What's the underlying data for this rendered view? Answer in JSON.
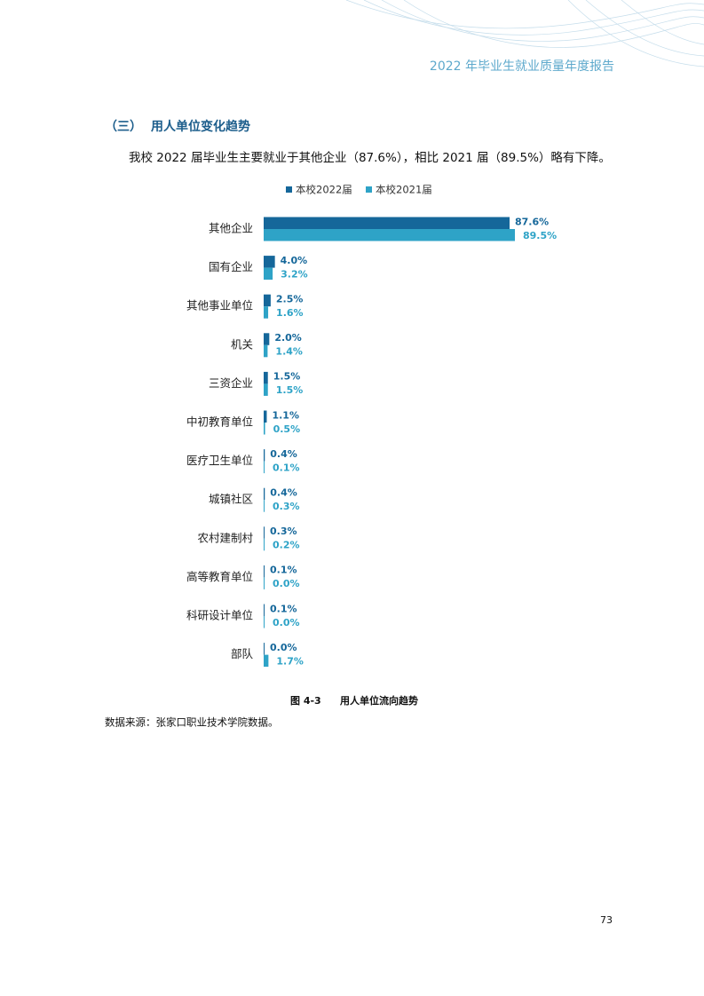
{
  "header": {
    "title": "2022 年毕业生就业质量年度报告"
  },
  "section": {
    "number": "（三）",
    "heading": "用人单位变化趋势"
  },
  "paragraph": "我校 2022 届毕业生主要就业于其他企业（87.6%），相比 2021 届（89.5%）略有下降。",
  "chart_data": {
    "type": "bar",
    "orientation": "horizontal",
    "categories": [
      "其他企业",
      "国有企业",
      "其他事业单位",
      "机关",
      "三资企业",
      "中初教育单位",
      "医疗卫生单位",
      "城镇社区",
      "农村建制村",
      "高等教育单位",
      "科研设计单位",
      "部队"
    ],
    "series": [
      {
        "name": "本校2022届",
        "color": "#15679a",
        "values": [
          87.6,
          4.0,
          2.5,
          2.0,
          1.5,
          1.1,
          0.4,
          0.4,
          0.3,
          0.1,
          0.1,
          0.0
        ],
        "value_labels": [
          "87.6%",
          "4.0%",
          "2.5%",
          "2.0%",
          "1.5%",
          "1.1%",
          "0.4%",
          "0.4%",
          "0.3%",
          "0.1%",
          "0.1%",
          "0.0%"
        ]
      },
      {
        "name": "本校2021届",
        "color": "#2ea3c7",
        "values": [
          89.5,
          3.2,
          1.6,
          1.4,
          1.5,
          0.5,
          0.1,
          0.3,
          0.2,
          0.0,
          0.0,
          1.7
        ],
        "value_labels": [
          "89.5%",
          "3.2%",
          "1.6%",
          "1.4%",
          "1.5%",
          "0.5%",
          "0.1%",
          "0.3%",
          "0.2%",
          "0.0%",
          "0.0%",
          "1.7%"
        ]
      }
    ],
    "legend": "top"
  },
  "caption": {
    "label": "图 4-3",
    "title": "用人单位流向趋势"
  },
  "source": "数据来源：张家口职业技术学院数据。",
  "page_number": "73"
}
